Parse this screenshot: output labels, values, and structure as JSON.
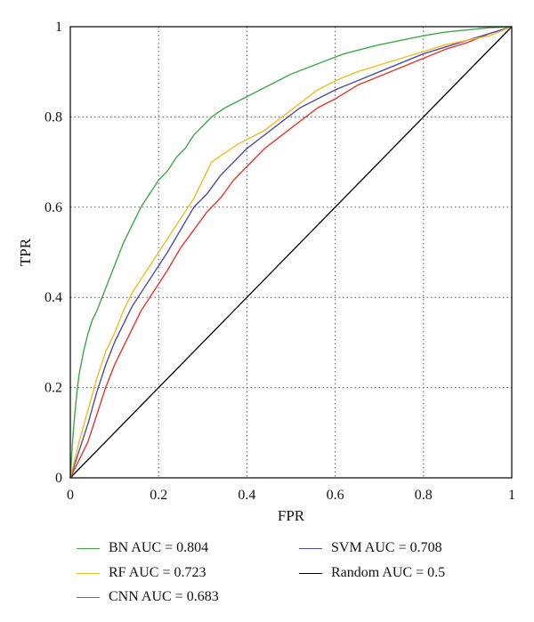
{
  "chart_data": {
    "type": "line",
    "xlabel": "FPR",
    "ylabel": "TPR",
    "xlim": [
      0,
      1
    ],
    "ylim": [
      0,
      1
    ],
    "x_ticks": [
      "0",
      "0.2",
      "0.4",
      "0.6",
      "0.8",
      "1"
    ],
    "y_ticks": [
      "0",
      "0.2",
      "0.4",
      "0.6",
      "0.8",
      "1"
    ],
    "grid": true,
    "legend_position": "bottom",
    "series": [
      {
        "name": "BN AUC = 0.804",
        "color": "#3daa47",
        "x": [
          0,
          0.005,
          0.01,
          0.015,
          0.02,
          0.03,
          0.04,
          0.05,
          0.06,
          0.08,
          0.1,
          0.12,
          0.14,
          0.16,
          0.18,
          0.2,
          0.22,
          0.24,
          0.26,
          0.28,
          0.3,
          0.32,
          0.35,
          0.38,
          0.4,
          0.43,
          0.46,
          0.5,
          0.54,
          0.58,
          0.62,
          0.66,
          0.7,
          0.75,
          0.8,
          0.85,
          0.9,
          0.95,
          1.0
        ],
        "y": [
          0,
          0.08,
          0.14,
          0.19,
          0.23,
          0.28,
          0.32,
          0.35,
          0.37,
          0.42,
          0.47,
          0.52,
          0.56,
          0.6,
          0.63,
          0.66,
          0.68,
          0.71,
          0.73,
          0.76,
          0.78,
          0.8,
          0.82,
          0.835,
          0.845,
          0.86,
          0.875,
          0.895,
          0.91,
          0.925,
          0.94,
          0.95,
          0.96,
          0.97,
          0.98,
          0.988,
          0.993,
          0.998,
          1.0
        ]
      },
      {
        "name": "RF AUC = 0.723",
        "color": "#f5b923",
        "x": [
          0,
          0.01,
          0.02,
          0.04,
          0.06,
          0.08,
          0.1,
          0.12,
          0.14,
          0.16,
          0.18,
          0.2,
          0.22,
          0.24,
          0.26,
          0.28,
          0.3,
          0.32,
          0.35,
          0.38,
          0.4,
          0.44,
          0.48,
          0.52,
          0.56,
          0.6,
          0.65,
          0.7,
          0.75,
          0.8,
          0.85,
          0.9,
          0.95,
          1.0
        ],
        "y": [
          0,
          0.04,
          0.08,
          0.15,
          0.22,
          0.28,
          0.32,
          0.37,
          0.41,
          0.44,
          0.47,
          0.5,
          0.53,
          0.56,
          0.59,
          0.62,
          0.66,
          0.7,
          0.72,
          0.74,
          0.75,
          0.77,
          0.8,
          0.83,
          0.86,
          0.88,
          0.9,
          0.915,
          0.93,
          0.945,
          0.96,
          0.97,
          0.98,
          1.0
        ]
      },
      {
        "name": "SVM AUC = 0.708",
        "color": "#4b4fa2",
        "x": [
          0,
          0.01,
          0.02,
          0.04,
          0.06,
          0.08,
          0.1,
          0.12,
          0.14,
          0.16,
          0.18,
          0.2,
          0.22,
          0.25,
          0.28,
          0.31,
          0.34,
          0.37,
          0.4,
          0.44,
          0.48,
          0.52,
          0.56,
          0.6,
          0.65,
          0.7,
          0.75,
          0.8,
          0.85,
          0.9,
          0.95,
          1.0
        ],
        "y": [
          0,
          0.03,
          0.06,
          0.12,
          0.19,
          0.25,
          0.3,
          0.34,
          0.38,
          0.41,
          0.44,
          0.47,
          0.5,
          0.55,
          0.6,
          0.63,
          0.67,
          0.7,
          0.73,
          0.76,
          0.79,
          0.82,
          0.84,
          0.86,
          0.88,
          0.9,
          0.92,
          0.94,
          0.955,
          0.97,
          0.985,
          1.0
        ]
      },
      {
        "name": "CNN AUC = 0.683",
        "color": "#e8352b",
        "x": [
          0,
          0.01,
          0.02,
          0.04,
          0.06,
          0.08,
          0.1,
          0.12,
          0.14,
          0.16,
          0.18,
          0.2,
          0.22,
          0.25,
          0.28,
          0.31,
          0.34,
          0.37,
          0.4,
          0.44,
          0.48,
          0.52,
          0.56,
          0.6,
          0.65,
          0.7,
          0.75,
          0.8,
          0.85,
          0.9,
          0.95,
          1.0
        ],
        "y": [
          0,
          0.02,
          0.04,
          0.08,
          0.14,
          0.2,
          0.25,
          0.29,
          0.33,
          0.37,
          0.4,
          0.43,
          0.46,
          0.51,
          0.55,
          0.59,
          0.62,
          0.66,
          0.69,
          0.73,
          0.76,
          0.79,
          0.82,
          0.84,
          0.87,
          0.89,
          0.91,
          0.93,
          0.95,
          0.965,
          0.985,
          1.0
        ]
      },
      {
        "name": "Random AUC = 0.5",
        "color": "#000000",
        "x": [
          0,
          1
        ],
        "y": [
          0,
          1
        ]
      }
    ]
  }
}
